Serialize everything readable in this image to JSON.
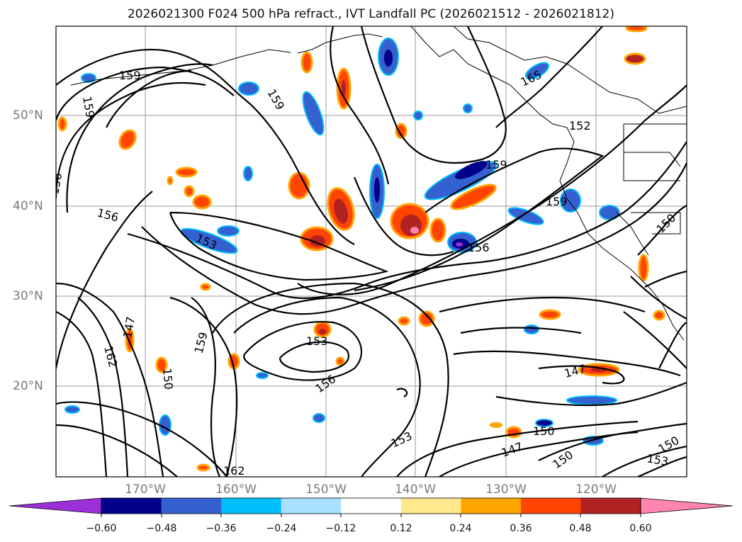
{
  "title": "2026021300 F024 500 hPa refract., IVT Landfall PC (2026021512 - 2026021812)",
  "lat_labels": [
    "50°N",
    "40°N",
    "30°N",
    "20°N"
  ],
  "lon_labels": [
    "170°W",
    "160°W",
    "150°W",
    "140°W",
    "130°W",
    "120°W"
  ],
  "contour_labels": [
    "159",
    "159",
    "159",
    "165",
    "152",
    "156",
    "156",
    "153",
    "159",
    "156",
    "159",
    "150",
    "147",
    "162",
    "159",
    "150",
    "153",
    "156",
    "153",
    "147",
    "150",
    "147",
    "150",
    "153",
    "150",
    "162"
  ],
  "colorbar": {
    "ticks": [
      "−0.60",
      "−0.48",
      "−0.36",
      "−0.24",
      "−0.12",
      "0.12",
      "0.24",
      "0.36",
      "0.48",
      "0.60"
    ],
    "colors": [
      "#9b30d9",
      "#00008b",
      "#3560d0",
      "#00bfff",
      "#a8e0ff",
      "#ffffff",
      "#ffe98c",
      "#ffa500",
      "#ff4500",
      "#b22222",
      "#ff85b0"
    ]
  },
  "colors": {
    "neg_strong": "#00008b",
    "neg_mid": "#3560d0",
    "neg_light": "#00bfff",
    "pos_light": "#ffa500",
    "pos_mid": "#ff4500",
    "pos_strong": "#b22222"
  }
}
